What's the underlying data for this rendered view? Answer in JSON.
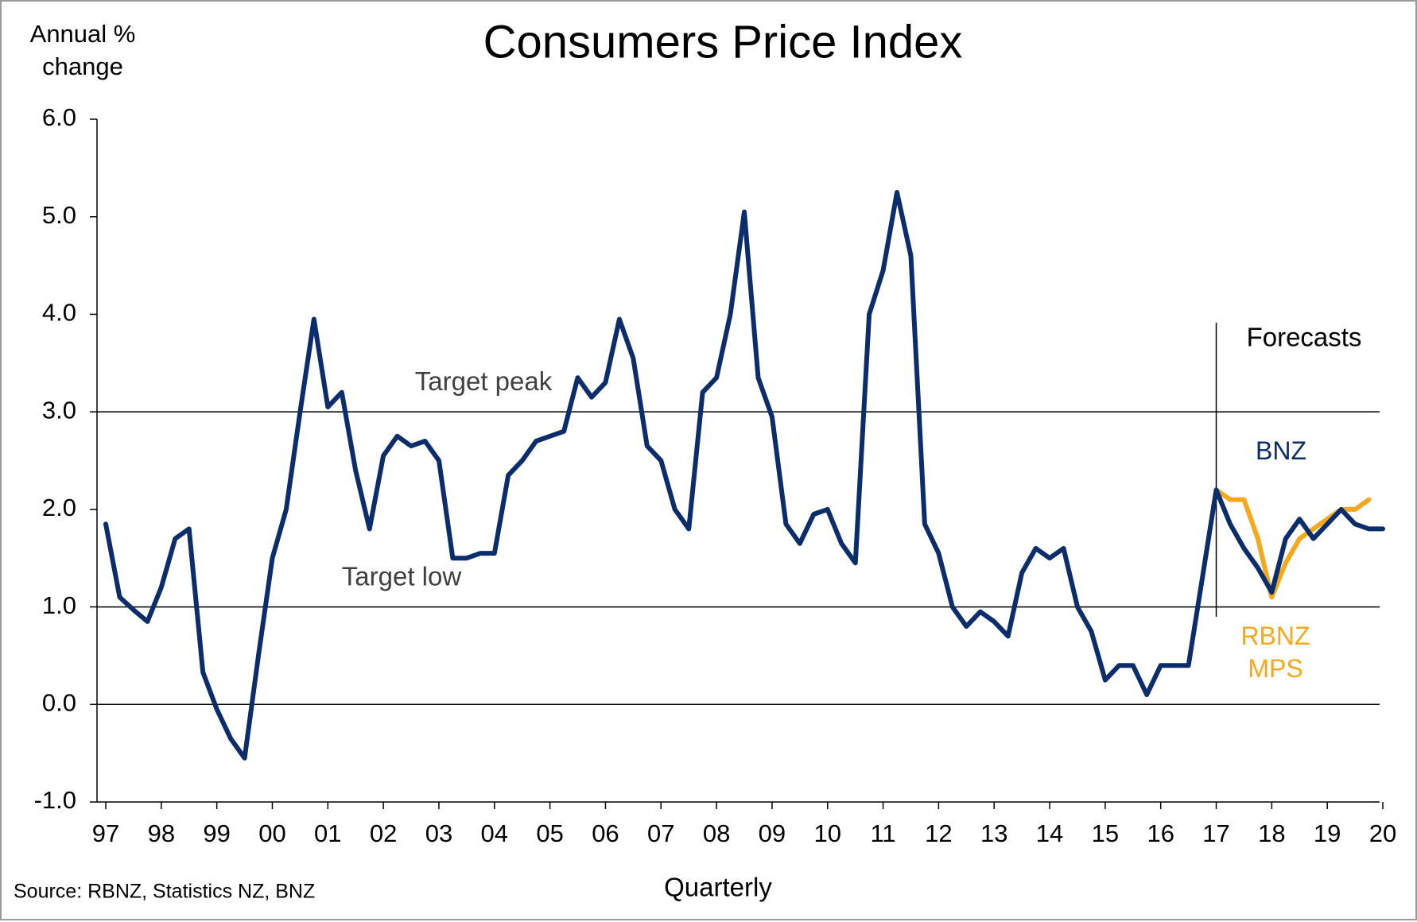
{
  "chart_data": {
    "type": "line",
    "title": "Consumers Price Index",
    "y_label": "Annual % change",
    "x_label": "Quarterly",
    "source": "Source: RBNZ, Statistics NZ, BNZ",
    "categories": [
      "97",
      null,
      null,
      null,
      "98",
      null,
      null,
      null,
      "99",
      null,
      null,
      null,
      "00",
      null,
      null,
      null,
      "01",
      null,
      null,
      null,
      "02",
      null,
      null,
      null,
      "03",
      null,
      null,
      null,
      "04",
      null,
      null,
      null,
      "05",
      null,
      null,
      null,
      "06",
      null,
      null,
      null,
      "07",
      null,
      null,
      null,
      "08",
      null,
      null,
      null,
      "09",
      null,
      null,
      null,
      "10",
      null,
      null,
      null,
      "11",
      null,
      null,
      null,
      "12",
      null,
      null,
      null,
      "13",
      null,
      null,
      null,
      "14",
      null,
      null,
      null,
      "15",
      null,
      null,
      null,
      "16",
      null,
      null,
      null,
      "17",
      null,
      null,
      null,
      "18",
      null,
      null,
      null,
      "19",
      null,
      null,
      null,
      "20"
    ],
    "series": [
      {
        "name": "BNZ",
        "color": "#0c2d6b",
        "values": [
          1.85,
          1.1,
          0.97,
          0.85,
          1.2,
          1.7,
          1.8,
          0.33,
          -0.05,
          -0.35,
          -0.55,
          0.5,
          1.5,
          2.0,
          3.0,
          3.95,
          3.05,
          3.2,
          2.4,
          1.8,
          2.55,
          2.75,
          2.65,
          2.7,
          2.5,
          1.5,
          1.5,
          1.55,
          1.55,
          2.35,
          2.5,
          2.7,
          2.75,
          2.8,
          3.35,
          3.15,
          3.3,
          3.95,
          3.55,
          2.65,
          2.5,
          2.0,
          1.8,
          3.2,
          3.35,
          4.0,
          5.05,
          3.35,
          2.95,
          1.85,
          1.65,
          1.95,
          2.0,
          1.65,
          1.45,
          4.0,
          4.45,
          5.25,
          4.6,
          1.85,
          1.55,
          1.0,
          0.8,
          0.95,
          0.85,
          0.7,
          1.35,
          1.6,
          1.5,
          1.6,
          1.0,
          0.75,
          0.25,
          0.4,
          0.4,
          0.1,
          0.4,
          0.4,
          0.4,
          1.3,
          2.2,
          1.85,
          1.6,
          1.4,
          1.15,
          1.7,
          1.9,
          1.7,
          1.85,
          2.0,
          1.85,
          1.8,
          1.8
        ]
      },
      {
        "name": "RBNZ MPS",
        "color": "#f5a81c",
        "values": [
          null,
          null,
          null,
          null,
          null,
          null,
          null,
          null,
          null,
          null,
          null,
          null,
          null,
          null,
          null,
          null,
          null,
          null,
          null,
          null,
          null,
          null,
          null,
          null,
          null,
          null,
          null,
          null,
          null,
          null,
          null,
          null,
          null,
          null,
          null,
          null,
          null,
          null,
          null,
          null,
          null,
          null,
          null,
          null,
          null,
          null,
          null,
          null,
          null,
          null,
          null,
          null,
          null,
          null,
          null,
          null,
          null,
          null,
          null,
          null,
          null,
          null,
          null,
          null,
          null,
          null,
          null,
          null,
          null,
          null,
          null,
          null,
          null,
          null,
          null,
          null,
          null,
          null,
          null,
          null,
          2.2,
          2.1,
          2.1,
          1.7,
          1.1,
          1.45,
          1.7,
          1.8,
          1.9,
          2.0,
          2.0,
          2.1,
          null
        ]
      }
    ],
    "ylim": [
      -1,
      6
    ],
    "yticks": [
      {
        "value": -1,
        "label": "-1.0"
      },
      {
        "value": 0,
        "label": "0.0"
      },
      {
        "value": 1,
        "label": "1.0"
      },
      {
        "value": 2,
        "label": "2.0"
      },
      {
        "value": 3,
        "label": "3.0"
      },
      {
        "value": 4,
        "label": "4.0"
      },
      {
        "value": 5,
        "label": "5.0"
      },
      {
        "value": 6,
        "label": "6.0"
      }
    ],
    "reference_lines": [
      {
        "value": 3,
        "label": "Target peak"
      },
      {
        "value": 1,
        "label": "Target low"
      },
      {
        "value": 0
      }
    ],
    "forecast": {
      "at": "17",
      "label": "Forecasts"
    }
  }
}
